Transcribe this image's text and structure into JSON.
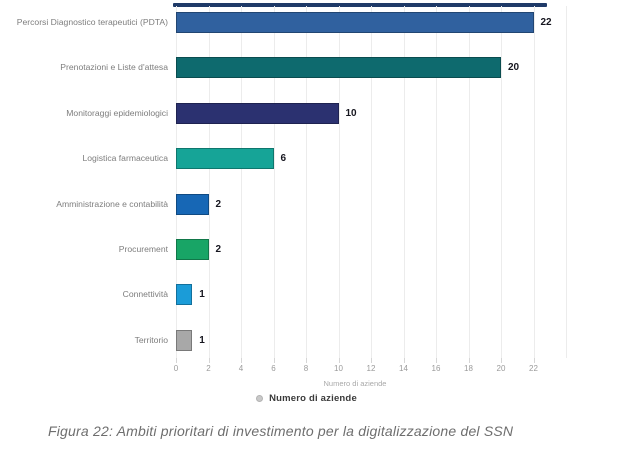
{
  "figure": {
    "caption": "Figura 22: Ambiti prioritari di investimento per la digitalizzazione del SSN"
  },
  "legend": {
    "label": "Numero di aziende",
    "marker_color": "#c9c9c9"
  },
  "chart_data": {
    "type": "bar",
    "orientation": "horizontal",
    "categories": [
      "Percorsi Diagnostico terapeutici (PDTA)",
      "Prenotazioni e Liste d'attesa",
      "Monitoraggi epidemiologici",
      "Logistica farmaceutica",
      "Amministrazione e contabilità",
      "Procurement",
      "Connettività",
      "Territorio"
    ],
    "values": [
      22,
      20,
      10,
      6,
      2,
      2,
      1,
      1
    ],
    "bar_colors": [
      "#30619f",
      "#0e6a6e",
      "#2b3170",
      "#16a497",
      "#1767b5",
      "#18a566",
      "#1b9cd8",
      "#a8a8a8"
    ],
    "xlabel": "Numero di aziende",
    "x_ticks": [
      0,
      2,
      4,
      6,
      8,
      10,
      12,
      14,
      16,
      18,
      20,
      22
    ],
    "xlim": [
      0,
      24
    ],
    "grid": true,
    "legend_entries": [
      "Numero di aziende"
    ],
    "legend_position": "bottom"
  }
}
